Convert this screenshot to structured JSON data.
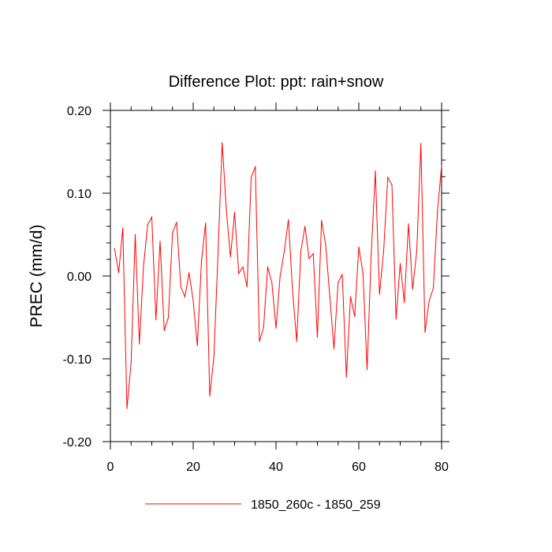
{
  "chart_data": {
    "type": "line",
    "title": "Difference Plot: ppt: rain+snow",
    "xlabel": "",
    "ylabel": "PREC  (mm/d)",
    "xlim": [
      0,
      80
    ],
    "ylim": [
      -0.2,
      0.2
    ],
    "x_ticks": [
      0,
      20,
      40,
      60,
      80
    ],
    "x_tick_labels": [
      "0",
      "20",
      "40",
      "60",
      "80"
    ],
    "y_ticks": [
      -0.2,
      -0.1,
      0.0,
      0.1,
      0.2
    ],
    "y_tick_labels": [
      "-0.20",
      "-0.10",
      "0.00",
      "0.10",
      "0.20"
    ],
    "grid": false,
    "legend_position": "bottom",
    "series": [
      {
        "name": "1850_260c - 1850_259",
        "color": "#ff0000",
        "x": [
          1,
          2,
          3,
          4,
          5,
          6,
          7,
          8,
          9,
          10,
          11,
          12,
          13,
          14,
          15,
          16,
          17,
          18,
          19,
          20,
          21,
          22,
          23,
          24,
          25,
          26,
          27,
          28,
          29,
          30,
          31,
          32,
          33,
          34,
          35,
          36,
          37,
          38,
          39,
          40,
          41,
          42,
          43,
          44,
          45,
          46,
          47,
          48,
          49,
          50,
          51,
          52,
          53,
          54,
          55,
          56,
          57,
          58,
          59,
          60,
          61,
          62,
          63,
          64,
          65,
          66,
          67,
          68,
          69,
          70,
          71,
          72,
          73,
          74,
          75,
          76,
          77,
          78,
          79,
          80
        ],
        "values": [
          0.033,
          0.004,
          0.058,
          -0.16,
          -0.105,
          0.05,
          -0.082,
          0.012,
          0.062,
          0.071,
          -0.053,
          0.042,
          -0.066,
          -0.05,
          0.052,
          0.065,
          -0.013,
          -0.025,
          0.004,
          -0.03,
          -0.084,
          0.018,
          0.064,
          -0.145,
          -0.098,
          0.028,
          0.161,
          0.08,
          0.023,
          0.077,
          0.003,
          0.011,
          -0.013,
          0.119,
          0.132,
          -0.079,
          -0.062,
          0.011,
          -0.008,
          -0.063,
          0.0,
          0.03,
          0.068,
          -0.018,
          -0.079,
          0.03,
          0.06,
          0.021,
          0.027,
          -0.074,
          0.067,
          0.038,
          -0.025,
          -0.088,
          -0.008,
          0.002,
          -0.122,
          -0.025,
          -0.049,
          0.035,
          0.004,
          -0.113,
          0.026,
          0.127,
          -0.022,
          0.03,
          0.119,
          0.11,
          -0.052,
          0.015,
          -0.032,
          0.063,
          -0.016,
          0.03,
          0.16,
          -0.068,
          -0.03,
          -0.015,
          0.078,
          0.133
        ]
      }
    ]
  }
}
